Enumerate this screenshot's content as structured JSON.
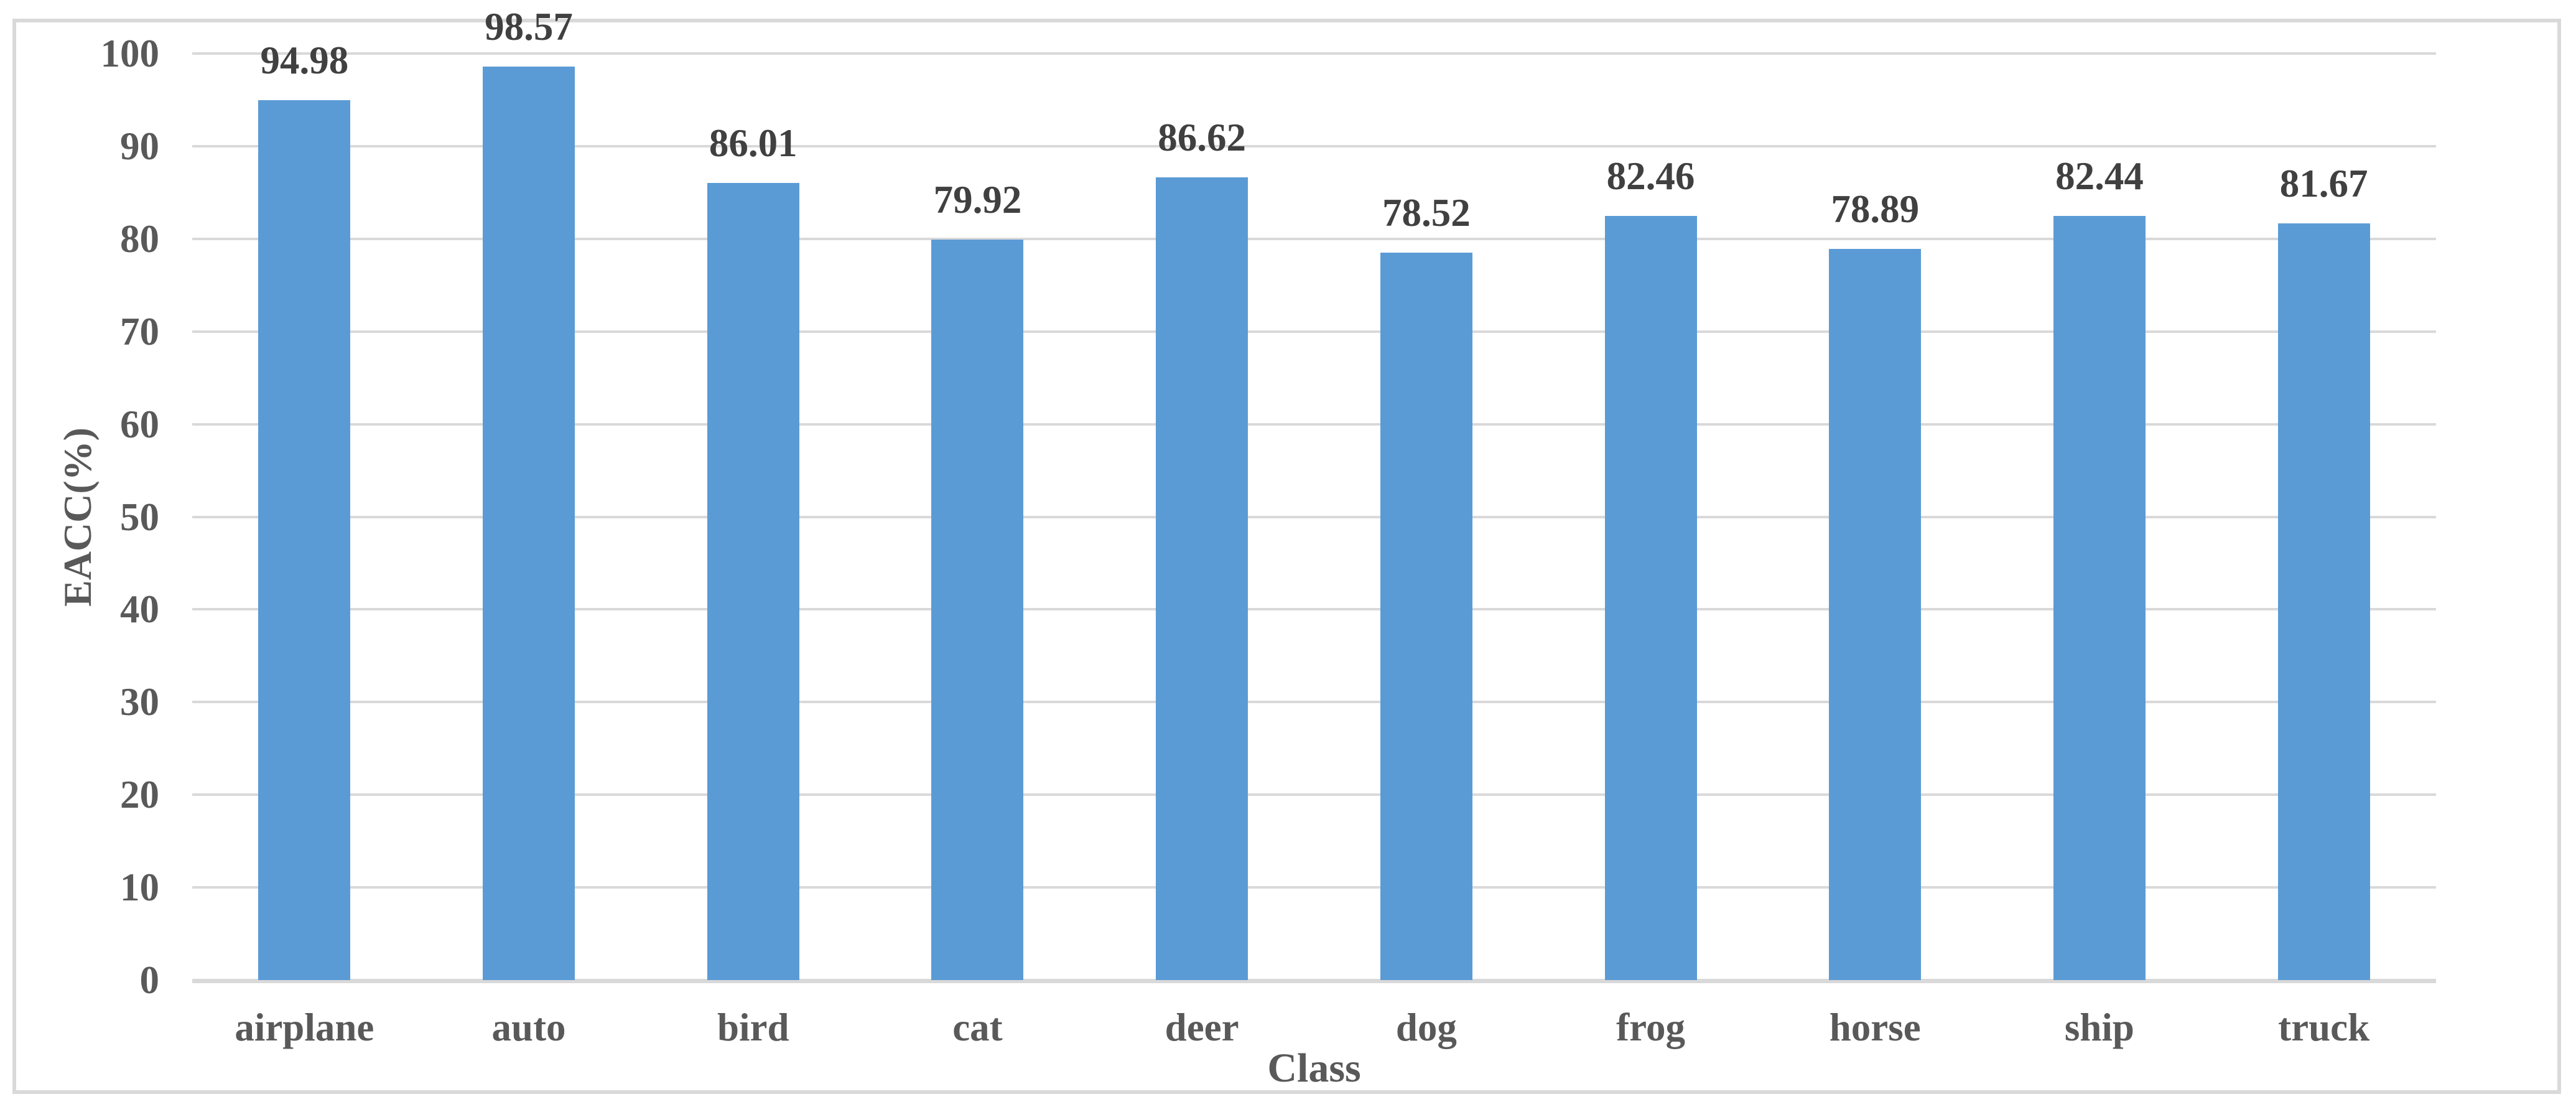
{
  "chart_data": {
    "type": "bar",
    "title": "",
    "xlabel": "Class",
    "ylabel": "EACC(%)",
    "categories": [
      "airplane",
      "auto",
      "bird",
      "cat",
      "deer",
      "dog",
      "frog",
      "horse",
      "ship",
      "truck"
    ],
    "values": [
      94.98,
      98.57,
      86.01,
      79.92,
      86.62,
      78.52,
      82.46,
      78.89,
      82.44,
      81.67
    ],
    "data_labels": [
      "94.98",
      "98.57",
      "86.01",
      "79.92",
      "86.62",
      "78.52",
      "82.46",
      "78.89",
      "82.44",
      "81.67"
    ],
    "ylim": [
      0,
      100
    ],
    "ytick_step": 10,
    "ytick_labels": [
      "0",
      "10",
      "20",
      "30",
      "40",
      "50",
      "60",
      "70",
      "80",
      "90",
      "100"
    ],
    "grid": "horizontal",
    "legend": "none",
    "colors": {
      "bar": "#5B9BD5",
      "gridline": "#D9D9D9",
      "axis_line": "#D9D9D9",
      "chart_border": "#D9D9D9",
      "axis_text": "#595959",
      "data_label_text": "#404040",
      "background": "#FFFFFF"
    }
  }
}
